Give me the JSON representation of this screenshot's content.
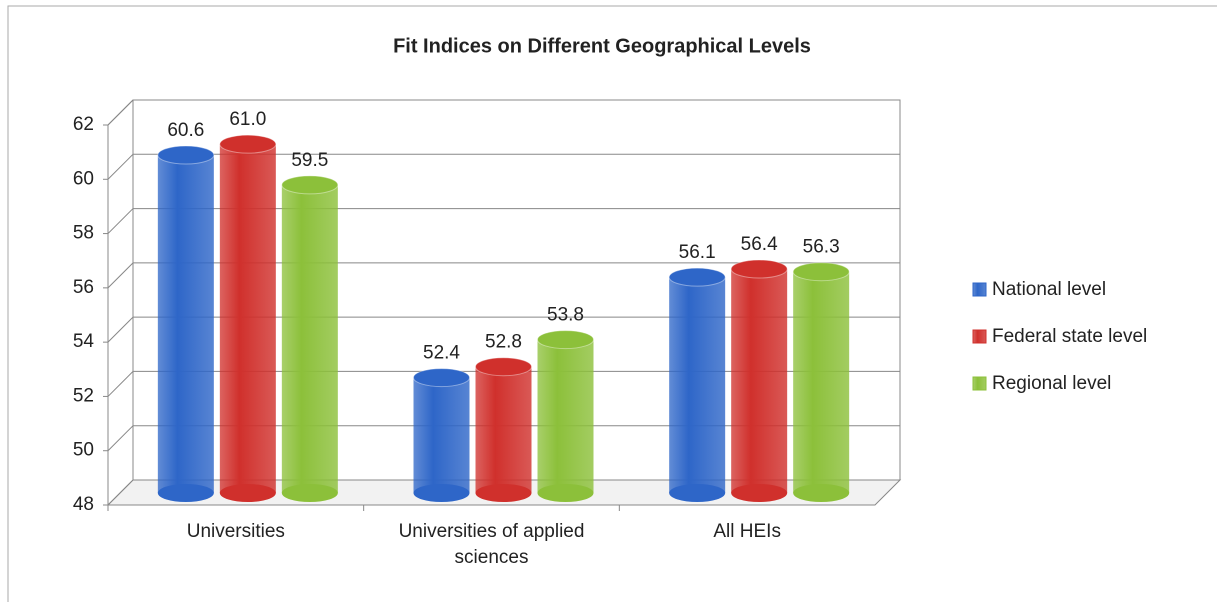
{
  "chart_data": {
    "type": "bar",
    "title": "Fit Indices on Different Geographical Levels",
    "categories": [
      "Universities",
      "Universities of applied sciences",
      "All HEIs"
    ],
    "series": [
      {
        "name": "National level",
        "color": "#2e66c8",
        "values": [
          60.6,
          52.4,
          56.1
        ]
      },
      {
        "name": "Federal state level",
        "color": "#d0302c",
        "values": [
          61.0,
          52.8,
          56.4
        ]
      },
      {
        "name": "Regional level",
        "color": "#8cc03a",
        "values": [
          59.5,
          53.8,
          56.3
        ]
      }
    ],
    "value_labels": [
      [
        "60.6",
        "52.4",
        "56.1"
      ],
      [
        "61.0",
        "52.8",
        "56.4"
      ],
      [
        "59.5",
        "53.8",
        "56.3"
      ]
    ],
    "ylim": [
      48,
      62
    ],
    "yticks": [
      48,
      50,
      52,
      54,
      56,
      58,
      60,
      62
    ],
    "grid": true,
    "legend": "right"
  }
}
